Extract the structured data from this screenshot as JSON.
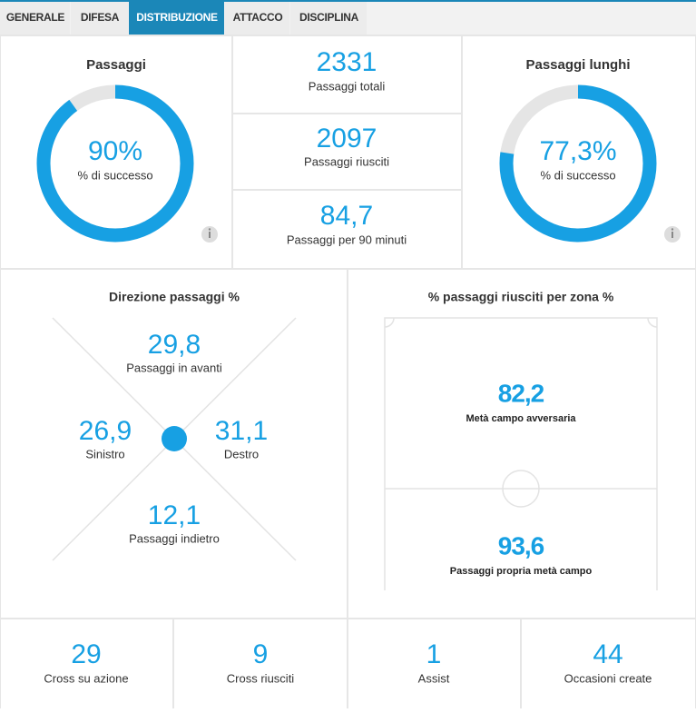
{
  "tabs": [
    "GENERALE",
    "DIFESA",
    "DISTRIBUZIONE",
    "ATTACCO",
    "DISCIPLINA"
  ],
  "active_tab": 2,
  "passes": {
    "title": "Passaggi",
    "value": 90,
    "label": "90%",
    "caption": "% di successo"
  },
  "stats": [
    {
      "value": "2331",
      "label": "Passaggi totali"
    },
    {
      "value": "2097",
      "label": "Passaggi riusciti"
    },
    {
      "value": "84,7",
      "label": "Passaggi per 90 minuti"
    }
  ],
  "long_passes": {
    "title": "Passaggi lunghi",
    "value": 77.3,
    "label": "77,3%",
    "caption": "% di successo"
  },
  "direction": {
    "title": "Direzione passaggi %",
    "forward": {
      "value": "29,8",
      "label": "Passaggi in avanti"
    },
    "left": {
      "value": "26,9",
      "label": "Sinistro"
    },
    "right": {
      "value": "31,1",
      "label": "Destro"
    },
    "back": {
      "value": "12,1",
      "label": "Passaggi indietro"
    }
  },
  "zones": {
    "title": "% passaggi riusciti per zona %",
    "opponent_half": {
      "value": "82,2",
      "label": "Metà campo avversaria"
    },
    "own_half": {
      "value": "93,6",
      "label": "Passaggi propria metà campo"
    }
  },
  "bottom": [
    {
      "value": "29",
      "label": "Cross su azione"
    },
    {
      "value": "9",
      "label": "Cross riusciti"
    },
    {
      "value": "1",
      "label": "Assist"
    },
    {
      "value": "44",
      "label": "Occasioni create"
    }
  ]
}
